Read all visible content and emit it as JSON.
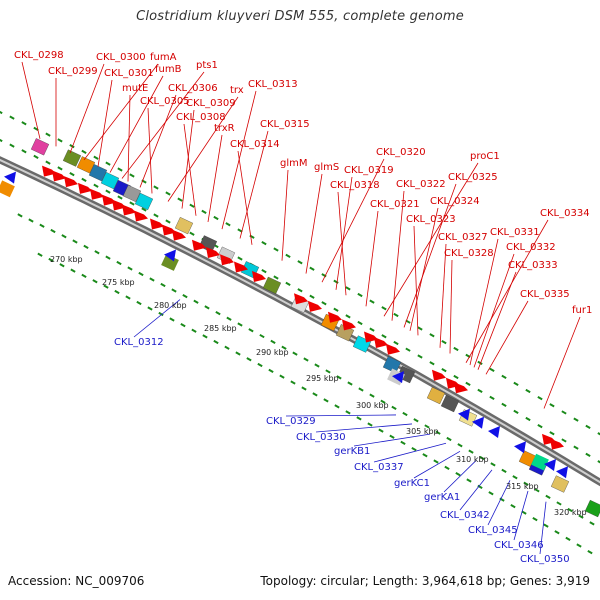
{
  "title": "Clostridium kluyveri DSM 555, complete genome",
  "footer": {
    "accession": "Accession: NC_009706",
    "topology": "Topology: circular; Length: 3,964,618 bp; Genes: 3,919"
  },
  "colors": {
    "forward_label": "#d40000",
    "reverse_label": "#1a1ac8",
    "forward_gene": "#ee0000",
    "reverse_gene": "#1010e6",
    "tick": "#1a8a1a",
    "backbone": "#888888"
  },
  "scale_ticks": [
    "270 kbp",
    "275 kbp",
    "280 kbp",
    "285 kbp",
    "290 kbp",
    "295 kbp",
    "300 kbp",
    "305 kbp",
    "310 kbp",
    "315 kbp",
    "320 kbp"
  ],
  "forward_labels": [
    "CKL_0298",
    "CKL_0299",
    "CKL_0300",
    "fumA",
    "CKL_0301",
    "fumB",
    "pts1",
    "mutE",
    "CKL_0306",
    "CKL_0305",
    "trx",
    "CKL_0309",
    "CKL_0308",
    "trxR",
    "CKL_0313",
    "CKL_0315",
    "CKL_0314",
    "glmM",
    "glmS",
    "CKL_0320",
    "CKL_0319",
    "CKL_0318",
    "proC1",
    "CKL_0322",
    "CKL_0325",
    "CKL_0321",
    "CKL_0324",
    "CKL_0323",
    "CKL_0334",
    "CKL_0327",
    "CKL_0331",
    "CKL_0328",
    "CKL_0332",
    "CKL_0333",
    "CKL_0335",
    "fur1"
  ],
  "reverse_labels": [
    "CKL_0312",
    "CKL_0329",
    "CKL_0330",
    "gerKB1",
    "CKL_0337",
    "gerKC1",
    "gerKA1",
    "CKL_0342",
    "CKL_0345",
    "CKL_0346",
    "CKL_0350"
  ]
}
